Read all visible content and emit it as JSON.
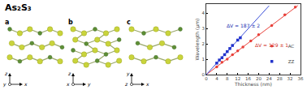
{
  "diagram": {
    "title": "As₂S₃",
    "panels": [
      {
        "label": "a",
        "axes": [
          "z",
          "y",
          "x"
        ]
      },
      {
        "label": "b",
        "axes": [
          "z",
          "x",
          "y"
        ]
      },
      {
        "label": "c",
        "axes": [
          "y",
          "z",
          "x"
        ]
      }
    ]
  },
  "chart_data": {
    "type": "scatter",
    "x_label": "Thickness (nm)",
    "y_label": "Wavelength (μm)",
    "xlim": [
      0,
      36
    ],
    "xticks": [
      0,
      4,
      8,
      12,
      16,
      20,
      24,
      28,
      32,
      36
    ],
    "ylim": [
      0,
      4.6
    ],
    "yticks": [
      0,
      1,
      2,
      3,
      4
    ],
    "legend": "bottom right",
    "annotations": [
      {
        "text": "ΔV = 187 ± 2",
        "color": "#1a2fb0"
      },
      {
        "text": "ΔV = 129 ± 1",
        "color": "#d0302a"
      }
    ],
    "series": [
      {
        "name": "AC",
        "color": "#e8413a",
        "marker": "circle",
        "x": [
          4,
          6,
          8,
          10,
          12,
          14,
          17,
          20,
          25,
          30,
          34
        ],
        "values": [
          0.5,
          0.8,
          1.0,
          1.3,
          1.55,
          1.8,
          2.2,
          2.6,
          3.2,
          3.9,
          4.4
        ]
      },
      {
        "name": "ZZ",
        "color": "#2233cc",
        "marker": "square",
        "x": [
          4,
          5,
          6,
          7,
          8,
          9,
          10,
          12,
          13
        ],
        "values": [
          0.75,
          0.95,
          1.1,
          1.3,
          1.5,
          1.7,
          1.9,
          2.25,
          2.4
        ]
      },
      {
        "type": "line",
        "color": "#e8413a",
        "x": [
          0,
          35
        ],
        "values": [
          0,
          4.5
        ]
      },
      {
        "type": "line",
        "color": "#3a4fd8",
        "x": [
          0,
          24
        ],
        "values": [
          0,
          4.49
        ]
      }
    ]
  }
}
